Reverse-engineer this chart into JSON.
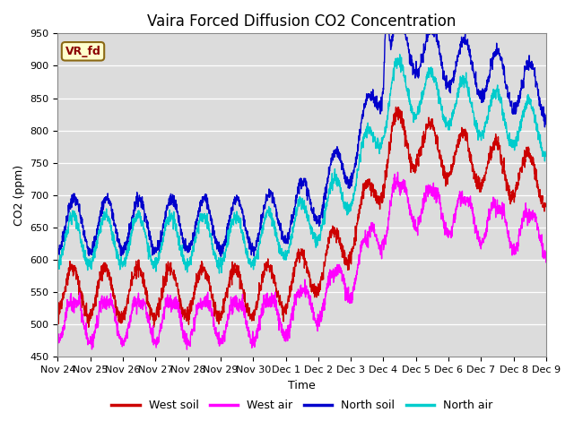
{
  "title": "Vaira Forced Diffusion CO2 Concentration",
  "xlabel": "Time",
  "ylabel": "CO2 (ppm)",
  "ylim": [
    450,
    950
  ],
  "background_color": "#dcdcdc",
  "legend_label": "VR_fd",
  "legend_items": [
    "West soil",
    "West air",
    "North soil",
    "North air"
  ],
  "legend_colors": [
    "#cc0000",
    "#ff00ff",
    "#0000cc",
    "#00cccc"
  ],
  "line_width": 1.0,
  "x_tick_labels": [
    "Nov 24",
    "Nov 25",
    "Nov 26",
    "Nov 27",
    "Nov 28",
    "Nov 29",
    "Nov 30",
    "Dec 1",
    "Dec 2",
    "Dec 3",
    "Dec 4",
    "Dec 5",
    "Dec 6",
    "Dec 7",
    "Dec 8",
    "Dec 9"
  ],
  "title_fontsize": 12,
  "axis_fontsize": 9,
  "n_days": 15,
  "n_ppd": 144
}
